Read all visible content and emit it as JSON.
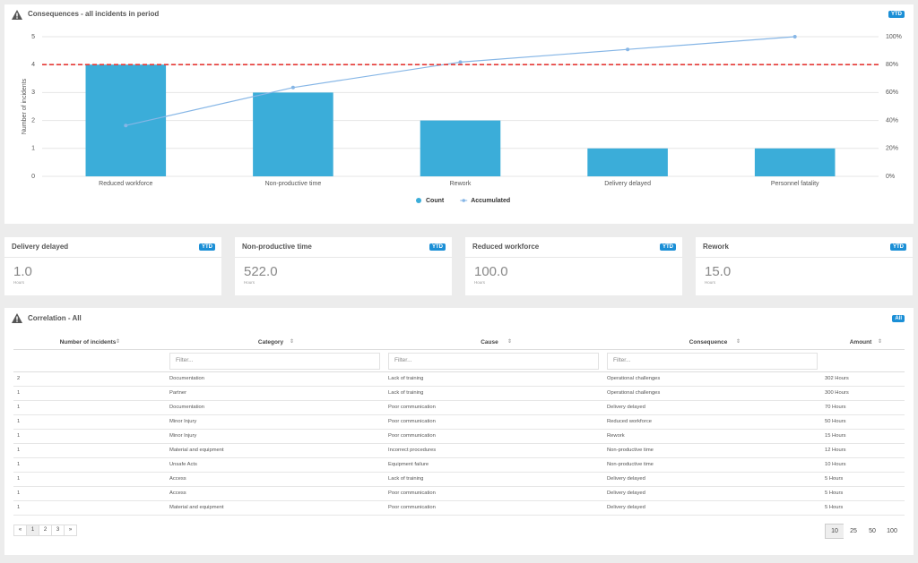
{
  "chart_panel": {
    "title": "Consequences - all incidents in period",
    "badge": "YTD"
  },
  "chart_data": {
    "type": "bar",
    "y_label": "Number of incidents",
    "categories": [
      "Reduced workforce",
      "Non-productive time",
      "Rework",
      "Delivery delayed",
      "Personnel fatality"
    ],
    "series": [
      {
        "name": "Count",
        "color": "#3badd9",
        "values": [
          4,
          3,
          2,
          1,
          1
        ]
      },
      {
        "name": "Accumulated",
        "type": "line",
        "axis": "y2",
        "color": "#86b6e6",
        "values": [
          36.4,
          63.6,
          81.8,
          90.9,
          100
        ]
      }
    ],
    "ylim": [
      0,
      5
    ],
    "yticks": [
      0,
      1,
      2,
      3,
      4,
      5
    ],
    "y2lim": [
      0,
      100
    ],
    "y2ticks": [
      {
        "value": 0,
        "label": "0%"
      },
      {
        "value": 20,
        "label": "20%"
      },
      {
        "value": 40,
        "label": "40%"
      },
      {
        "value": 60,
        "label": "60%"
      },
      {
        "value": 80,
        "label": "80%"
      },
      {
        "value": 100,
        "label": "100%"
      }
    ],
    "threshold": {
      "value": 80,
      "axis": "y2",
      "color": "#e53935"
    },
    "grid": true,
    "legend": "bottom"
  },
  "kpis": [
    {
      "title": "Delivery delayed",
      "badge": "YTD",
      "value": "1.0",
      "unit": "Hours"
    },
    {
      "title": "Non-productive time",
      "badge": "YTD",
      "value": "522.0",
      "unit": "Hours"
    },
    {
      "title": "Reduced workforce",
      "badge": "YTD",
      "value": "100.0",
      "unit": "Hours"
    },
    {
      "title": "Rework",
      "badge": "YTD",
      "value": "15.0",
      "unit": "Hours"
    }
  ],
  "table": {
    "title": "Correlation - All",
    "badge": "All",
    "columns": [
      "Number of incidents",
      "Category",
      "Cause",
      "Consequence",
      "Amount"
    ],
    "filters": [
      "Filter...",
      "Filter...",
      "Filter..."
    ],
    "rows": [
      [
        "2",
        "Documentation",
        "Lack of training",
        "Operational challenges",
        "302 Hours"
      ],
      [
        "1",
        "Partner",
        "Lack of training",
        "Operational challenges",
        "300 Hours"
      ],
      [
        "1",
        "Documentation",
        "Poor communication",
        "Delivery delayed",
        "70 Hours"
      ],
      [
        "1",
        "Minor Injury",
        "Poor communication",
        "Reduced workforce",
        "50 Hours"
      ],
      [
        "1",
        "Minor Injury",
        "Poor communication",
        "Rework",
        "15 Hours"
      ],
      [
        "1",
        "Material and equipment",
        "Incorrect procedures",
        "Non-productive time",
        "12 Hours"
      ],
      [
        "1",
        "Unsafe Acts",
        "Equipment failure",
        "Non-productive time",
        "10 Hours"
      ],
      [
        "1",
        "Access",
        "Lack of training",
        "Delivery delayed",
        "5 Hours"
      ],
      [
        "1",
        "Access",
        "Poor communication",
        "Delivery delayed",
        "5 Hours"
      ],
      [
        "1",
        "Material and equipment",
        "Poor communication",
        "Delivery delayed",
        "5 Hours"
      ]
    ],
    "pagination": [
      "«",
      "1",
      "2",
      "3",
      "»"
    ],
    "page_sizes": [
      "10",
      "25",
      "50",
      "100"
    ]
  }
}
